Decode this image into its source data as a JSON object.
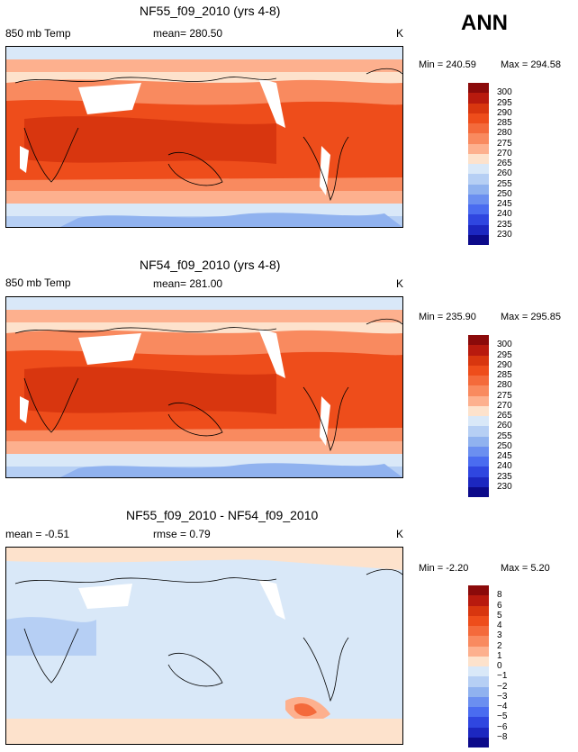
{
  "season": "ANN",
  "units": "K",
  "panels": [
    {
      "title": "NF55_f09_2010 (yrs 4-8)",
      "left_label": "850 mb Temp",
      "stat_text": "mean= 280.50",
      "units": "K",
      "min_text": "Min = 240.59",
      "max_text": "Max = 294.58"
    },
    {
      "title": "NF54_f09_2010 (yrs 4-8)",
      "left_label": "850 mb Temp",
      "stat_text": "mean= 281.00",
      "units": "K",
      "min_text": "Min = 235.90",
      "max_text": "Max = 295.85"
    },
    {
      "title": "NF55_f09_2010 - NF54_f09_2010",
      "left_label": "mean =   -0.51",
      "stat_text": "rmse =   0.79",
      "units": "K",
      "min_text": "Min =   -2.20",
      "max_text": "Max =    5.20"
    }
  ],
  "colorbars": {
    "abs": {
      "levels": [
        "300",
        "295",
        "290",
        "285",
        "280",
        "275",
        "270",
        "265",
        "260",
        "255",
        "250",
        "245",
        "240",
        "235",
        "230"
      ],
      "colors": [
        "#8b0a0a",
        "#b81a0e",
        "#d8360f",
        "#ee4d1b",
        "#f46a3b",
        "#f98a5f",
        "#fdb08e",
        "#fde2cc",
        "#d9e8f8",
        "#b6cff4",
        "#90b2ef",
        "#6b8ff0",
        "#4a6cf0",
        "#2f46e0",
        "#1c27c0",
        "#0c0a8a"
      ]
    },
    "diff": {
      "levels": [
        "8",
        "6",
        "5",
        "4",
        "3",
        "2",
        "1",
        "0",
        "−1",
        "−2",
        "−3",
        "−4",
        "−5",
        "−6",
        "−8"
      ],
      "colors": [
        "#8b0a0a",
        "#b81a0e",
        "#d8360f",
        "#ee4d1b",
        "#f46a3b",
        "#f98a5f",
        "#fdb08e",
        "#fde2cc",
        "#d9e8f8",
        "#b6cff4",
        "#90b2ef",
        "#6b8ff0",
        "#4a6cf0",
        "#2f46e0",
        "#1c27c0",
        "#0c0a8a"
      ]
    }
  },
  "chart_data": [
    {
      "type": "heatmap",
      "title": "NF55_f09_2010 (yrs 4-8)",
      "variable": "850 mb Temp",
      "units": "K",
      "mean": 280.5,
      "min": 240.59,
      "max": 294.58,
      "contour_levels": [
        230,
        235,
        240,
        245,
        250,
        255,
        260,
        265,
        270,
        275,
        280,
        285,
        290,
        295,
        300
      ]
    },
    {
      "type": "heatmap",
      "title": "NF54_f09_2010 (yrs 4-8)",
      "variable": "850 mb Temp",
      "units": "K",
      "mean": 281.0,
      "min": 235.9,
      "max": 295.85,
      "contour_levels": [
        230,
        235,
        240,
        245,
        250,
        255,
        260,
        265,
        270,
        275,
        280,
        285,
        290,
        295,
        300
      ]
    },
    {
      "type": "heatmap",
      "title": "NF55_f09_2010 - NF54_f09_2010",
      "units": "K",
      "mean": -0.51,
      "rmse": 0.79,
      "min": -2.2,
      "max": 5.2,
      "contour_levels": [
        -8,
        -6,
        -5,
        -4,
        -3,
        -2,
        -1,
        0,
        1,
        2,
        3,
        4,
        5,
        6,
        8
      ]
    }
  ]
}
